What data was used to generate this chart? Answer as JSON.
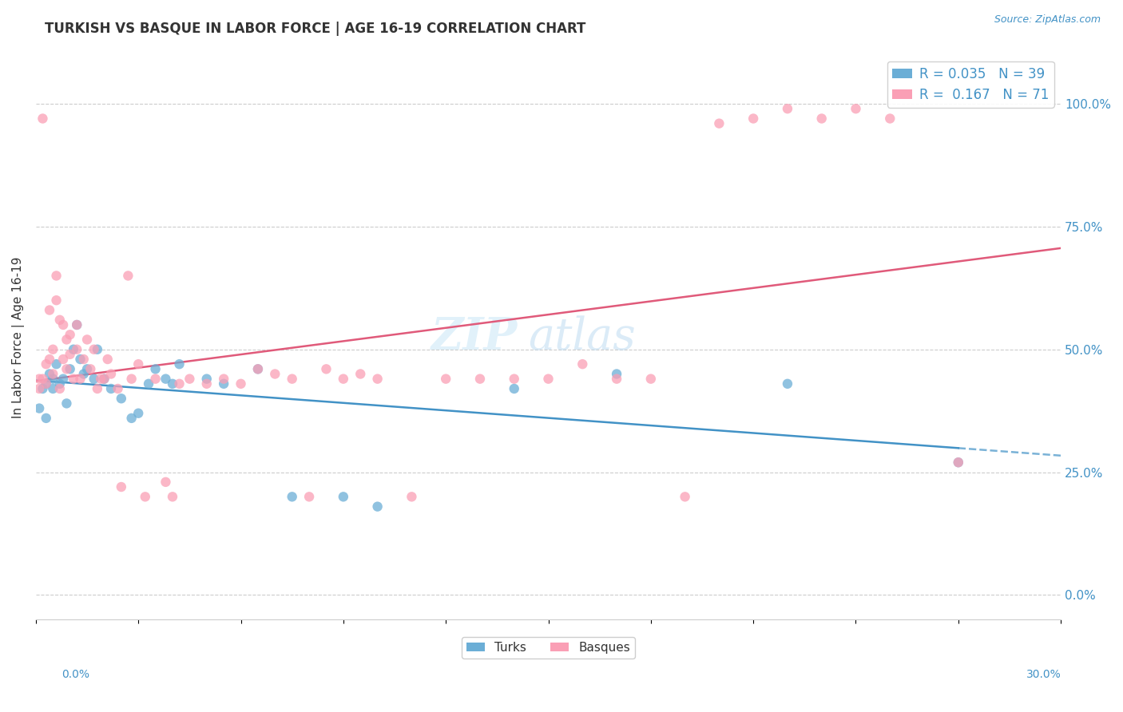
{
  "title": "TURKISH VS BASQUE IN LABOR FORCE | AGE 16-19 CORRELATION CHART",
  "source": "Source: ZipAtlas.com",
  "ylabel": "In Labor Force | Age 16-19",
  "right_yticks": [
    0.0,
    0.25,
    0.5,
    0.75,
    1.0
  ],
  "right_yticklabels": [
    "0.0%",
    "25.0%",
    "50.0%",
    "75.0%",
    "100.0%"
  ],
  "turks_R": 0.035,
  "turks_N": 39,
  "basques_R": 0.167,
  "basques_N": 71,
  "color_turks": "#6baed6",
  "color_basques": "#fa9fb5",
  "color_turks_line": "#4292c6",
  "color_basques_line": "#e05a7a",
  "watermark_zip": "ZIP",
  "watermark_atlas": "atlas",
  "xlim": [
    0.0,
    0.3
  ],
  "ylim": [
    -0.05,
    1.1
  ],
  "turks_x": [
    0.001,
    0.002,
    0.003,
    0.003,
    0.004,
    0.005,
    0.005,
    0.006,
    0.007,
    0.008,
    0.009,
    0.01,
    0.011,
    0.012,
    0.013,
    0.014,
    0.015,
    0.017,
    0.018,
    0.02,
    0.022,
    0.025,
    0.028,
    0.03,
    0.033,
    0.035,
    0.038,
    0.04,
    0.042,
    0.05,
    0.055,
    0.065,
    0.075,
    0.09,
    0.1,
    0.14,
    0.17,
    0.22,
    0.27
  ],
  "turks_y": [
    0.38,
    0.42,
    0.43,
    0.36,
    0.45,
    0.44,
    0.42,
    0.47,
    0.43,
    0.44,
    0.39,
    0.46,
    0.5,
    0.55,
    0.48,
    0.45,
    0.46,
    0.44,
    0.5,
    0.44,
    0.42,
    0.4,
    0.36,
    0.37,
    0.43,
    0.46,
    0.44,
    0.43,
    0.47,
    0.44,
    0.43,
    0.46,
    0.2,
    0.2,
    0.18,
    0.42,
    0.45,
    0.43,
    0.27
  ],
  "basques_x": [
    0.001,
    0.001,
    0.002,
    0.002,
    0.003,
    0.003,
    0.004,
    0.004,
    0.005,
    0.005,
    0.006,
    0.006,
    0.007,
    0.007,
    0.008,
    0.008,
    0.009,
    0.009,
    0.01,
    0.01,
    0.011,
    0.012,
    0.012,
    0.013,
    0.014,
    0.015,
    0.016,
    0.017,
    0.018,
    0.019,
    0.02,
    0.021,
    0.022,
    0.024,
    0.025,
    0.027,
    0.028,
    0.03,
    0.032,
    0.035,
    0.038,
    0.04,
    0.042,
    0.045,
    0.05,
    0.055,
    0.06,
    0.065,
    0.07,
    0.075,
    0.08,
    0.085,
    0.09,
    0.095,
    0.1,
    0.11,
    0.12,
    0.13,
    0.14,
    0.15,
    0.16,
    0.17,
    0.18,
    0.19,
    0.2,
    0.21,
    0.22,
    0.23,
    0.24,
    0.25,
    0.27
  ],
  "basques_y": [
    0.42,
    0.44,
    0.97,
    0.44,
    0.43,
    0.47,
    0.58,
    0.48,
    0.5,
    0.45,
    0.6,
    0.65,
    0.56,
    0.42,
    0.55,
    0.48,
    0.52,
    0.46,
    0.49,
    0.53,
    0.44,
    0.5,
    0.55,
    0.44,
    0.48,
    0.52,
    0.46,
    0.5,
    0.42,
    0.44,
    0.44,
    0.48,
    0.45,
    0.42,
    0.22,
    0.65,
    0.44,
    0.47,
    0.2,
    0.44,
    0.23,
    0.2,
    0.43,
    0.44,
    0.43,
    0.44,
    0.43,
    0.46,
    0.45,
    0.44,
    0.2,
    0.46,
    0.44,
    0.45,
    0.44,
    0.2,
    0.44,
    0.44,
    0.44,
    0.44,
    0.47,
    0.44,
    0.44,
    0.2,
    0.96,
    0.97,
    0.99,
    0.97,
    0.99,
    0.97,
    0.27
  ]
}
